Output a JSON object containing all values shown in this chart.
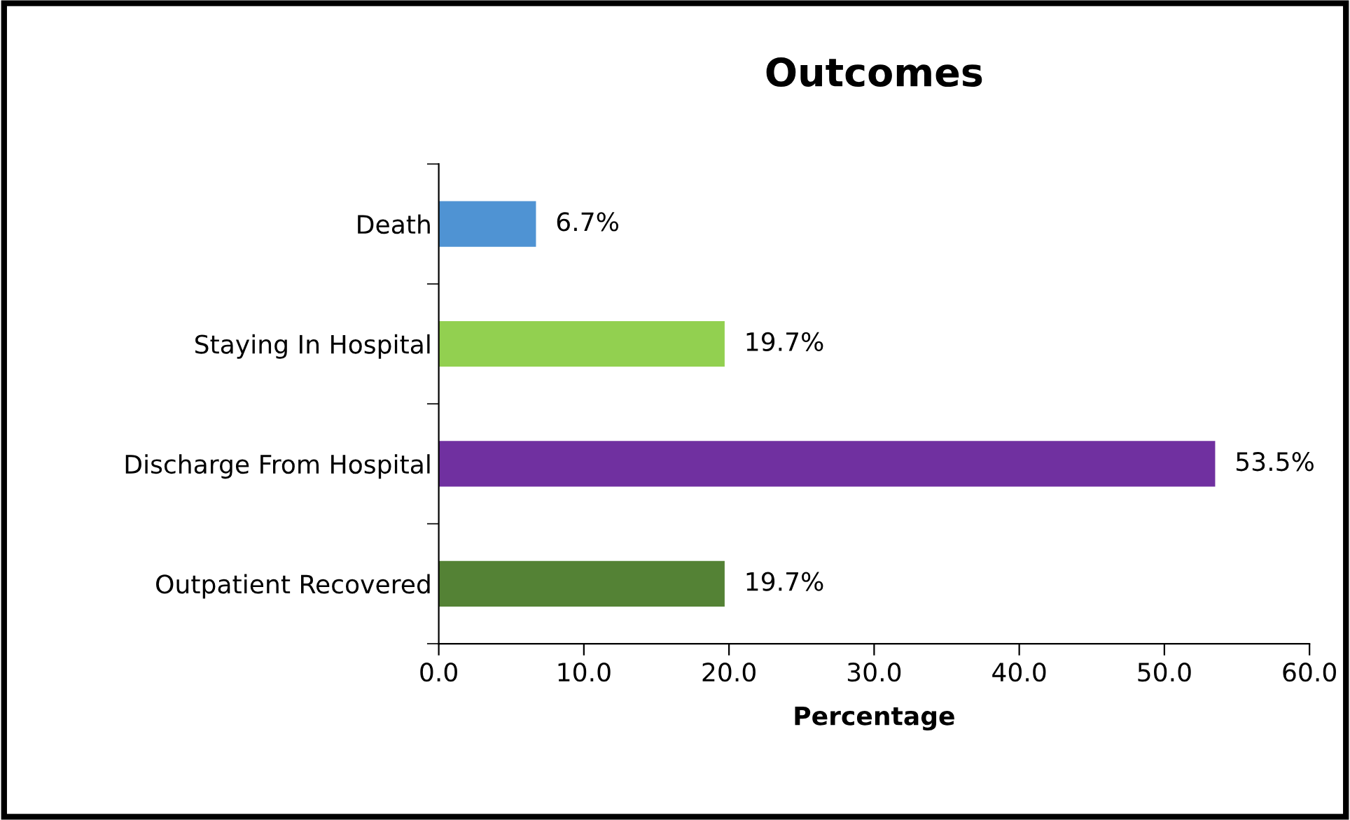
{
  "chart_data": {
    "type": "bar",
    "orientation": "horizontal",
    "title": "Outcomes",
    "xlabel": "Percentage",
    "categories": [
      "Death",
      "Staying In Hospital",
      "Discharge From Hospital",
      "Outpatient Recovered"
    ],
    "values": [
      6.7,
      19.7,
      53.5,
      19.7
    ],
    "colors": [
      "#4f93d3",
      "#92d050",
      "#7030a0",
      "#548235"
    ],
    "value_labels": [
      "6.7%",
      "19.7%",
      "53.5%",
      "19.7%"
    ],
    "xlim": [
      0,
      60
    ],
    "xticks": [
      {
        "value": 0,
        "label": "0.0"
      },
      {
        "value": 10,
        "label": "10.0"
      },
      {
        "value": 20,
        "label": "20.0"
      },
      {
        "value": 30,
        "label": "30.0"
      },
      {
        "value": 40,
        "label": "40.0"
      },
      {
        "value": 50,
        "label": "50.0"
      },
      {
        "value": 60,
        "label": "60.0"
      }
    ],
    "grid": false
  }
}
